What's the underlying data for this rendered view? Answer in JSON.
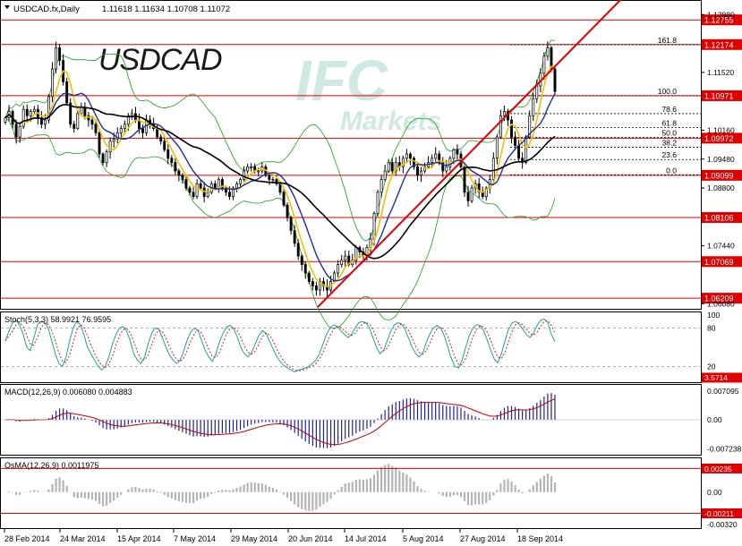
{
  "header": {
    "title": "USDCAD.fx,Daily",
    "ohlc": "1.11618 1.11634 1.10708 1.11072"
  },
  "watermark": {
    "symbol": "USDCAD",
    "brand": "IFC",
    "brand_sub": "Markets"
  },
  "chart_data": [
    {
      "type": "candlestick",
      "panel": "price",
      "price_scale": [
        "1.12880",
        "1.11520",
        "1.10160",
        "1.09480",
        "1.08800",
        "1.07440",
        "1.06080"
      ],
      "ylim": [
        1.0598,
        1.1318
      ],
      "levels": [
        {
          "value": 1.12755,
          "label": "1.12755"
        },
        {
          "value": 1.12174,
          "label": "1.12174"
        },
        {
          "value": 1.10971,
          "label": "1.10971"
        },
        {
          "value": 1.09972,
          "label": "1.09972"
        },
        {
          "value": 1.09099,
          "label": "1.09099"
        },
        {
          "value": 1.08106,
          "label": "1.08106"
        },
        {
          "value": 1.07069,
          "label": "1.07069"
        },
        {
          "value": 1.06209,
          "label": "1.06209"
        }
      ],
      "fibonacci": [
        {
          "label": "161.8",
          "value": 1.1217
        },
        {
          "label": "100.0",
          "value": 1.1097
        },
        {
          "label": "78.6",
          "value": 1.1055
        },
        {
          "label": "61.8",
          "value": 1.1022
        },
        {
          "label": "50.0",
          "value": 1.0999
        },
        {
          "label": "38.2",
          "value": 1.0976
        },
        {
          "label": "23.6",
          "value": 1.0947
        },
        {
          "label": "0.0",
          "value": 1.0911
        }
      ],
      "trendline": [
        [
          "20 Jun 2014",
          1.06
        ],
        [
          "24 Sep 2014",
          1.1166
        ]
      ],
      "x_ticks": [
        "28 Feb 2014",
        "24 Mar 2014",
        "15 Apr 2014",
        "7 May 2014",
        "29 May 2014",
        "20 Jun 2014",
        "14 Jul 2014",
        "5 Aug 2014",
        "27 Aug 2014",
        "18 Sep 2014"
      ],
      "closes": [
        1.1045,
        1.106,
        1.103,
        1.1,
        1.1025,
        1.1065,
        1.105,
        1.106,
        1.1065,
        1.1045,
        1.103,
        1.104,
        1.1095,
        1.116,
        1.121,
        1.118,
        1.113,
        1.108,
        1.103,
        1.102,
        1.1055,
        1.107,
        1.105,
        1.104,
        1.103,
        1.101,
        1.096,
        1.094,
        1.0965,
        1.099,
        1.0995,
        1.101,
        1.102,
        1.103,
        1.105,
        1.1055,
        1.104,
        1.102,
        1.101,
        1.104,
        1.103,
        1.102,
        1.1,
        1.099,
        1.097,
        1.095,
        1.094,
        1.092,
        1.091,
        1.09,
        1.088,
        1.087,
        1.086,
        1.089,
        1.088,
        1.086,
        1.087,
        1.089,
        1.088,
        1.09,
        1.088,
        1.087,
        1.086,
        1.088,
        1.089,
        1.09,
        1.092,
        1.093,
        1.093,
        1.092,
        1.092,
        1.093,
        1.091,
        1.09,
        1.09,
        1.089,
        1.087,
        1.084,
        1.081,
        1.078,
        1.075,
        1.072,
        1.07,
        1.068,
        1.066,
        1.065,
        1.064,
        1.066,
        1.065,
        1.064,
        1.066,
        1.068,
        1.07,
        1.071,
        1.072,
        1.07,
        1.071,
        1.074,
        1.073,
        1.072,
        1.074,
        1.076,
        1.082,
        1.087,
        1.09,
        1.092,
        1.094,
        1.092,
        1.094,
        1.093,
        1.095,
        1.096,
        1.095,
        1.093,
        1.091,
        1.092,
        1.093,
        1.094,
        1.095,
        1.096,
        1.094,
        1.092,
        1.093,
        1.095,
        1.097,
        1.096,
        1.093,
        1.087,
        1.085,
        1.088,
        1.089,
        1.087,
        1.086,
        1.088,
        1.09,
        1.095,
        1.1,
        1.105,
        1.106,
        1.104,
        1.1,
        1.098,
        1.095,
        1.094,
        1.1,
        1.105,
        1.109,
        1.112,
        1.115,
        1.119,
        1.121,
        1.116,
        1.1107
      ]
    },
    {
      "type": "line",
      "panel": "stoch",
      "title": "Stoch(5,3,3) 58.9921 76.9595",
      "ylim": [
        0,
        100
      ],
      "y_ticks": [
        "100",
        "80",
        "20"
      ],
      "levels": [
        80,
        20
      ],
      "marker": "3.5714",
      "main": [
        60,
        75,
        88,
        92,
        85,
        70,
        50,
        45,
        65,
        85,
        90,
        88,
        80,
        60,
        40,
        25,
        20,
        35,
        60,
        80,
        90,
        85,
        70,
        50,
        40,
        30,
        20,
        15,
        20,
        35,
        55,
        70,
        80,
        82,
        75,
        60,
        40,
        30,
        25,
        35,
        55,
        72,
        80,
        78,
        65,
        50,
        38,
        30,
        25,
        30,
        45,
        62,
        74,
        80,
        76,
        60,
        45,
        35,
        28,
        40,
        58,
        72,
        82,
        84,
        78,
        66,
        50,
        40,
        35,
        42,
        55,
        68,
        76,
        72,
        60,
        48,
        36,
        28,
        22,
        18,
        15,
        12,
        14,
        16,
        18,
        20,
        25,
        30,
        40,
        55,
        70,
        80,
        85,
        82,
        76,
        70,
        65,
        70,
        80,
        88,
        90,
        88,
        80,
        65,
        50,
        40,
        45,
        60,
        75,
        85,
        88,
        86,
        78,
        64,
        50,
        40,
        35,
        42,
        58,
        72,
        80,
        84,
        80,
        68,
        50,
        32,
        20,
        18,
        30,
        50,
        68,
        80,
        85,
        84,
        76,
        62,
        46,
        32,
        26,
        40,
        60,
        78,
        88,
        90,
        86,
        78,
        70,
        65,
        72,
        84,
        92,
        94,
        88,
        70,
        59
      ]
    },
    {
      "type": "bar",
      "panel": "macd",
      "title": "MACD(12,26,9) 0.006080 0.004883",
      "y_ticks": [
        "0.007095",
        "0.00",
        "-0.007238"
      ],
      "ylim": [
        -0.008,
        0.008
      ]
    },
    {
      "type": "bar",
      "panel": "osma",
      "title": "OsMA(12,26,9) 0.0011975",
      "y_ticks": [
        "0.00235",
        "0.00",
        "-0.00211",
        "-0.00320"
      ],
      "ylim": [
        -0.0034,
        0.0031
      ]
    }
  ],
  "colors": {
    "candle": "#000000",
    "level": "#e00000",
    "trend": "#e00000",
    "ma_fast": "#f0c000",
    "ma_mid": "#1c2ea0",
    "ma_slow": "#000000",
    "bands": "#1aa020",
    "stoch_main": "#20a0a0",
    "stoch_signal": "#d02020",
    "macd_hist": "#2020a0",
    "macd_signal": "#c00000",
    "osma": "#b4b4b4",
    "label_bg": "#e00000"
  }
}
